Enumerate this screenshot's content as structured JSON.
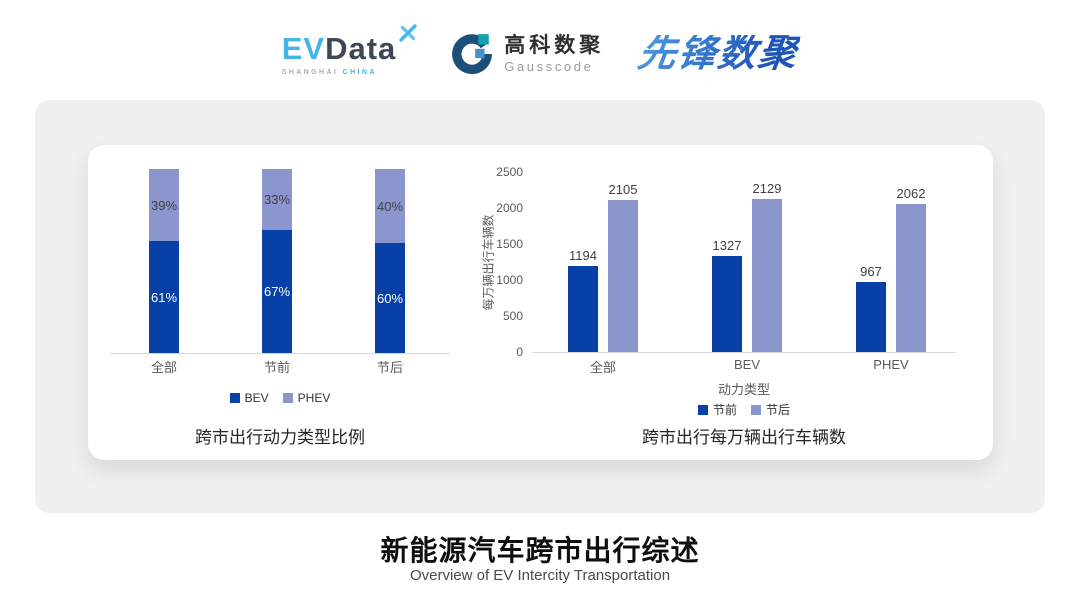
{
  "header": {
    "evdata": {
      "ev": "EV",
      "data": "Data",
      "sub1": "SHANGHAI",
      "sub2": "CHINA"
    },
    "gausscode": {
      "cn": "高科数聚",
      "en": "Gausscode"
    },
    "pioneer": {
      "text": "先锋数聚"
    }
  },
  "brand_colors": {
    "evdata_cyan": "#45b5e8",
    "evdata_slate": "#3d4756",
    "gausscode_navy": "#1c4f7a",
    "gausscode_teal": "#189fae",
    "gausscode_blue": "#4a90c8",
    "pioneer_blue_start": "#4f9be0",
    "pioneer_blue_end": "#1d55b8"
  },
  "chart_data": [
    {
      "type": "bar",
      "subtype": "stacked-percent",
      "title": "跨市出行动力类型比例",
      "categories": [
        "全部",
        "节前",
        "节后"
      ],
      "series": [
        {
          "name": "BEV",
          "values": [
            61,
            67,
            60
          ],
          "unit": "%",
          "color": "#0741a8",
          "label_color": "#ffffff"
        },
        {
          "name": "PHEV",
          "values": [
            39,
            33,
            40
          ],
          "unit": "%",
          "color": "#8c96ce",
          "label_color": "#404040"
        }
      ],
      "ylim": [
        0,
        100
      ],
      "grid": false,
      "legend_position": "bottom"
    },
    {
      "type": "bar",
      "subtype": "grouped",
      "title": "跨市出行每万辆出行车辆数",
      "xlabel": "动力类型",
      "ylabel": "每万辆出行车辆数",
      "categories": [
        "全部",
        "BEV",
        "PHEV"
      ],
      "series": [
        {
          "name": "节前",
          "values": [
            1194,
            1327,
            967
          ],
          "color": "#0741a8"
        },
        {
          "name": "节后",
          "values": [
            2105,
            2129,
            2062
          ],
          "color": "#8c96ce"
        }
      ],
      "ylim": [
        0,
        2500
      ],
      "yticks": [
        0,
        500,
        1000,
        1500,
        2000,
        2500
      ],
      "grid": false,
      "legend_position": "bottom"
    }
  ],
  "footer": {
    "title": "新能源汽车跨市出行综述",
    "subtitle": "Overview of EV Intercity Transportation"
  }
}
